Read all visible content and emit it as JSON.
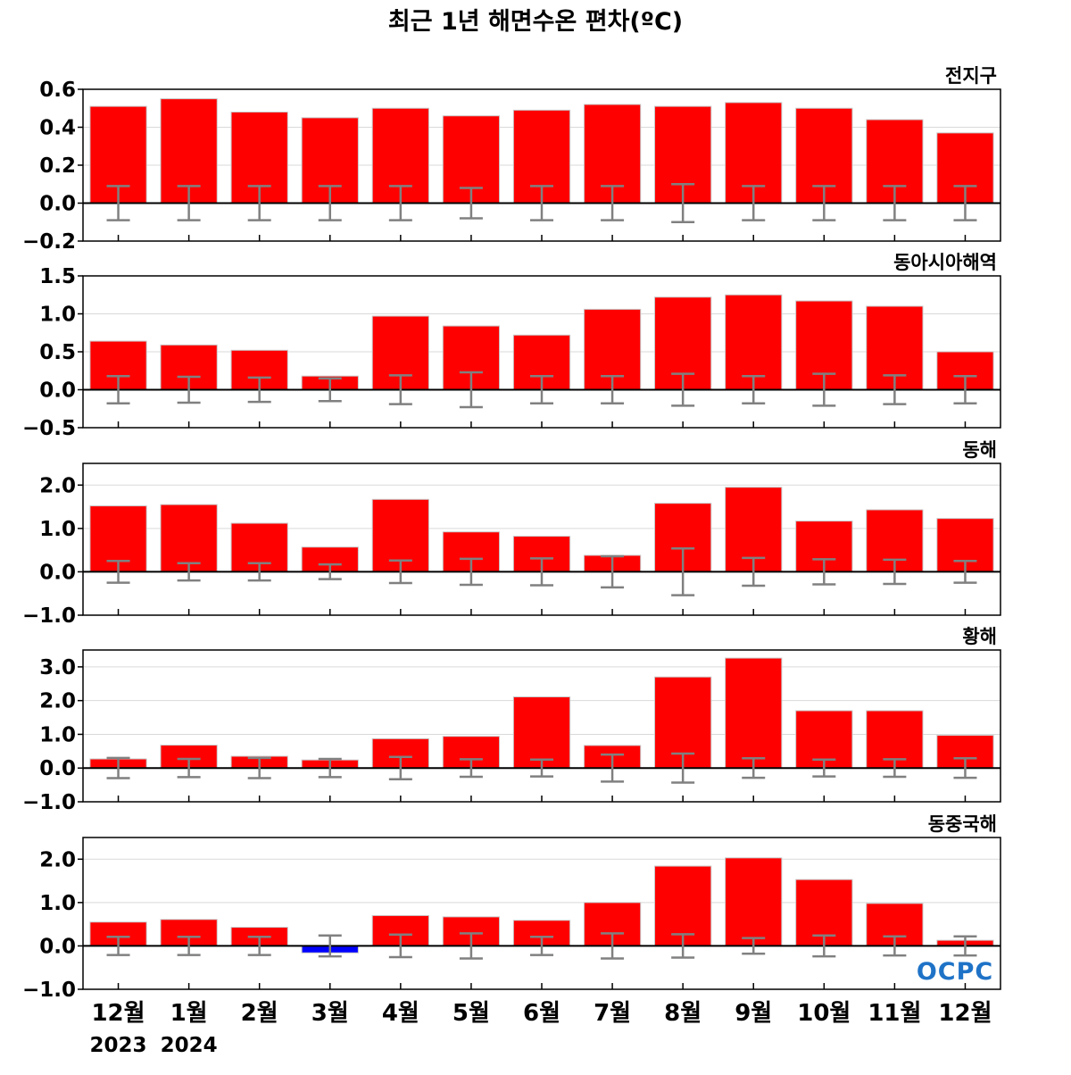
{
  "chart_title": "최근 1년 해면수온 편차(ºC)",
  "logo_text": "OCPC",
  "year_labels": [
    "2023",
    "2024"
  ],
  "colors": {
    "positive": "#ff0000",
    "negative": "#0000ff",
    "errorbar": "#808080",
    "grid": "#d9d9d9",
    "axis": "#000000"
  },
  "chart_data": [
    {
      "type": "bar",
      "title": "전지구",
      "categories": [
        "12월",
        "1월",
        "2월",
        "3월",
        "4월",
        "5월",
        "6월",
        "7월",
        "8월",
        "9월",
        "10월",
        "11월",
        "12월"
      ],
      "values": [
        0.51,
        0.55,
        0.48,
        0.45,
        0.5,
        0.46,
        0.49,
        0.52,
        0.51,
        0.53,
        0.5,
        0.44,
        0.37
      ],
      "error": [
        0.09,
        0.09,
        0.09,
        0.09,
        0.09,
        0.08,
        0.09,
        0.09,
        0.1,
        0.09,
        0.09,
        0.09,
        0.09
      ],
      "ylim": [
        -0.2,
        0.6
      ],
      "yticks": [
        -0.2,
        0.0,
        0.2,
        0.4,
        0.6
      ],
      "ytick_labels": [
        "−0.2",
        "0.0",
        "0.2",
        "0.4",
        "0.6"
      ],
      "grid": true
    },
    {
      "type": "bar",
      "title": "동아시아해역",
      "categories": [
        "12월",
        "1월",
        "2월",
        "3월",
        "4월",
        "5월",
        "6월",
        "7월",
        "8월",
        "9월",
        "10월",
        "11월",
        "12월"
      ],
      "values": [
        0.64,
        0.59,
        0.52,
        0.18,
        0.97,
        0.84,
        0.72,
        1.06,
        1.22,
        1.25,
        1.17,
        1.1,
        0.5
      ],
      "error": [
        0.18,
        0.17,
        0.16,
        0.15,
        0.19,
        0.23,
        0.18,
        0.18,
        0.21,
        0.18,
        0.21,
        0.19,
        0.18
      ],
      "ylim": [
        -0.5,
        1.5
      ],
      "yticks": [
        -0.5,
        0.0,
        0.5,
        1.0,
        1.5
      ],
      "ytick_labels": [
        "−0.5",
        "0.0",
        "0.5",
        "1.0",
        "1.5"
      ],
      "grid": true
    },
    {
      "type": "bar",
      "title": "동해",
      "categories": [
        "12월",
        "1월",
        "2월",
        "3월",
        "4월",
        "5월",
        "6월",
        "7월",
        "8월",
        "9월",
        "10월",
        "11월",
        "12월"
      ],
      "values": [
        1.52,
        1.55,
        1.12,
        0.57,
        1.67,
        0.92,
        0.82,
        0.38,
        1.58,
        1.95,
        1.17,
        1.43,
        1.23
      ],
      "error": [
        0.25,
        0.2,
        0.2,
        0.17,
        0.26,
        0.3,
        0.31,
        0.36,
        0.54,
        0.32,
        0.29,
        0.28,
        0.25
      ],
      "ylim": [
        -1.0,
        2.5
      ],
      "yticks": [
        -1.0,
        0.0,
        1.0,
        2.0
      ],
      "ytick_labels": [
        "−1.0",
        "0.0",
        "1.0",
        "2.0"
      ],
      "grid": true
    },
    {
      "type": "bar",
      "title": "황해",
      "categories": [
        "12월",
        "1월",
        "2월",
        "3월",
        "4월",
        "5월",
        "6월",
        "7월",
        "8월",
        "9월",
        "10월",
        "11월",
        "12월"
      ],
      "values": [
        0.27,
        0.68,
        0.35,
        0.24,
        0.87,
        0.94,
        2.11,
        0.67,
        2.7,
        3.26,
        1.7,
        1.7,
        0.97
      ],
      "error": [
        0.3,
        0.27,
        0.3,
        0.27,
        0.33,
        0.26,
        0.25,
        0.4,
        0.43,
        0.29,
        0.25,
        0.26,
        0.29
      ],
      "ylim": [
        -1.0,
        3.5
      ],
      "yticks": [
        -1.0,
        0.0,
        1.0,
        2.0,
        3.0
      ],
      "ytick_labels": [
        "−1.0",
        "0.0",
        "1.0",
        "2.0",
        "3.0"
      ],
      "grid": true
    },
    {
      "type": "bar",
      "title": "동중국해",
      "categories": [
        "12월",
        "1월",
        "2월",
        "3월",
        "4월",
        "5월",
        "6월",
        "7월",
        "8월",
        "9월",
        "10월",
        "11월",
        "12월"
      ],
      "values": [
        0.55,
        0.61,
        0.43,
        -0.16,
        0.7,
        0.67,
        0.59,
        1.0,
        1.84,
        2.03,
        1.53,
        0.98,
        0.13
      ],
      "error": [
        0.21,
        0.21,
        0.21,
        0.24,
        0.26,
        0.29,
        0.21,
        0.29,
        0.27,
        0.18,
        0.24,
        0.22,
        0.22
      ],
      "ylim": [
        -1.0,
        2.5
      ],
      "yticks": [
        -1.0,
        0.0,
        1.0,
        2.0
      ],
      "ytick_labels": [
        "−1.0",
        "0.0",
        "1.0",
        "2.0"
      ],
      "grid": true
    }
  ]
}
